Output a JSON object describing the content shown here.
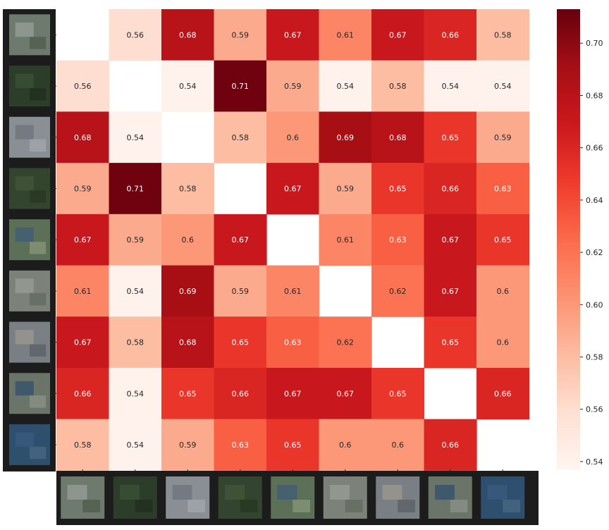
{
  "chart_data": {
    "type": "heatmap",
    "title": "",
    "xlabel": "",
    "ylabel": "",
    "rows": 9,
    "cols": 9,
    "row_thumbnails": [
      "suburban-residential",
      "dense-forest",
      "urban-dense",
      "forest-hills",
      "river-golf-course",
      "urban-mixed",
      "stadium-urban",
      "coastal-town",
      "water-bay"
    ],
    "col_thumbnails": [
      "suburban-residential",
      "dense-forest",
      "urban-dense",
      "forest-hills",
      "river-golf-course",
      "urban-mixed",
      "stadium-urban",
      "coastal-town",
      "water-bay"
    ],
    "values": [
      [
        null,
        0.56,
        0.68,
        0.59,
        0.67,
        0.61,
        0.67,
        0.66,
        0.58
      ],
      [
        0.56,
        null,
        0.54,
        0.71,
        0.59,
        0.54,
        0.58,
        0.54,
        0.54
      ],
      [
        0.68,
        0.54,
        null,
        0.58,
        0.6,
        0.69,
        0.68,
        0.65,
        0.59
      ],
      [
        0.59,
        0.71,
        0.58,
        null,
        0.67,
        0.59,
        0.65,
        0.66,
        0.63
      ],
      [
        0.67,
        0.59,
        0.6,
        0.67,
        null,
        0.61,
        0.63,
        0.67,
        0.65
      ],
      [
        0.61,
        0.54,
        0.69,
        0.59,
        0.61,
        null,
        0.62,
        0.67,
        0.6
      ],
      [
        0.67,
        0.58,
        0.68,
        0.65,
        0.63,
        0.62,
        null,
        0.65,
        0.6
      ],
      [
        0.66,
        0.54,
        0.65,
        0.66,
        0.67,
        0.67,
        0.65,
        null,
        0.66
      ],
      [
        0.58,
        0.54,
        0.59,
        0.63,
        0.65,
        0.6,
        0.6,
        0.66,
        null
      ]
    ],
    "vmin": 0.537,
    "vmax": 0.713,
    "colormap": "Reds",
    "colorbar": {
      "ticks": [
        0.54,
        0.56,
        0.58,
        0.6,
        0.62,
        0.64,
        0.66,
        0.68,
        0.7
      ],
      "tick_labels": [
        "0.54",
        "0.56",
        "0.58",
        "0.60",
        "0.62",
        "0.64",
        "0.66",
        "0.68",
        "0.70"
      ],
      "placement": "right"
    },
    "annotations": "cell values shown to two decimals",
    "thumbnail_strip_color": "#1c1c1c",
    "label_dark_color": "#262626",
    "label_light_color": "#ffffff"
  }
}
